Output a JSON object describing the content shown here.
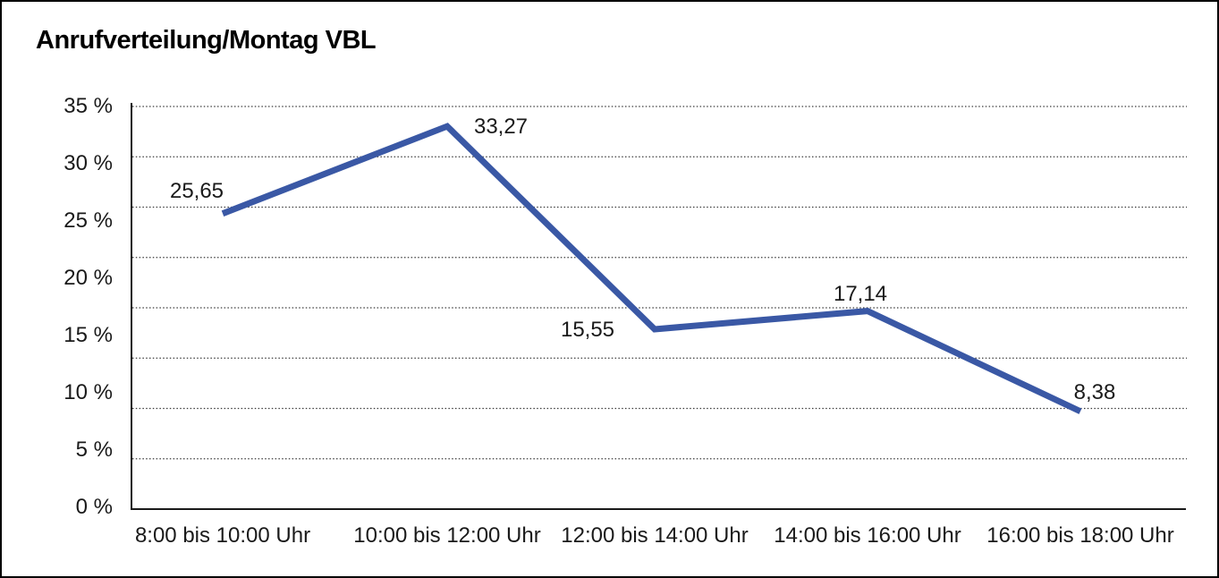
{
  "chart_data": {
    "type": "line",
    "title": "Anrufverteilung/Montag VBL",
    "categories": [
      "8:00 bis 10:00 Uhr",
      "10:00 bis 12:00 Uhr",
      "12:00 bis 14:00 Uhr",
      "14:00 bis 16:00 Uhr",
      "16:00 bis 18:00 Uhr"
    ],
    "values": [
      25.65,
      33.27,
      15.55,
      17.14,
      8.38
    ],
    "data_labels": [
      "25,65",
      "33,27",
      "15,55",
      "17,14",
      "8,38"
    ],
    "y_tick_labels": [
      "35 %",
      "30 %",
      "25 %",
      "20 %",
      "15 %",
      "10 %",
      "5 %",
      "0 %"
    ],
    "ylim": [
      0,
      35
    ],
    "y_tick_step": 5,
    "xlabel": "",
    "ylabel": "",
    "legend": "none",
    "grid": "horizontal dotted",
    "line_color": "#3A58A5",
    "grid_color": "#3c3c3c",
    "axis_color": "#1a1a1a",
    "background_color": "#ffffff"
  }
}
